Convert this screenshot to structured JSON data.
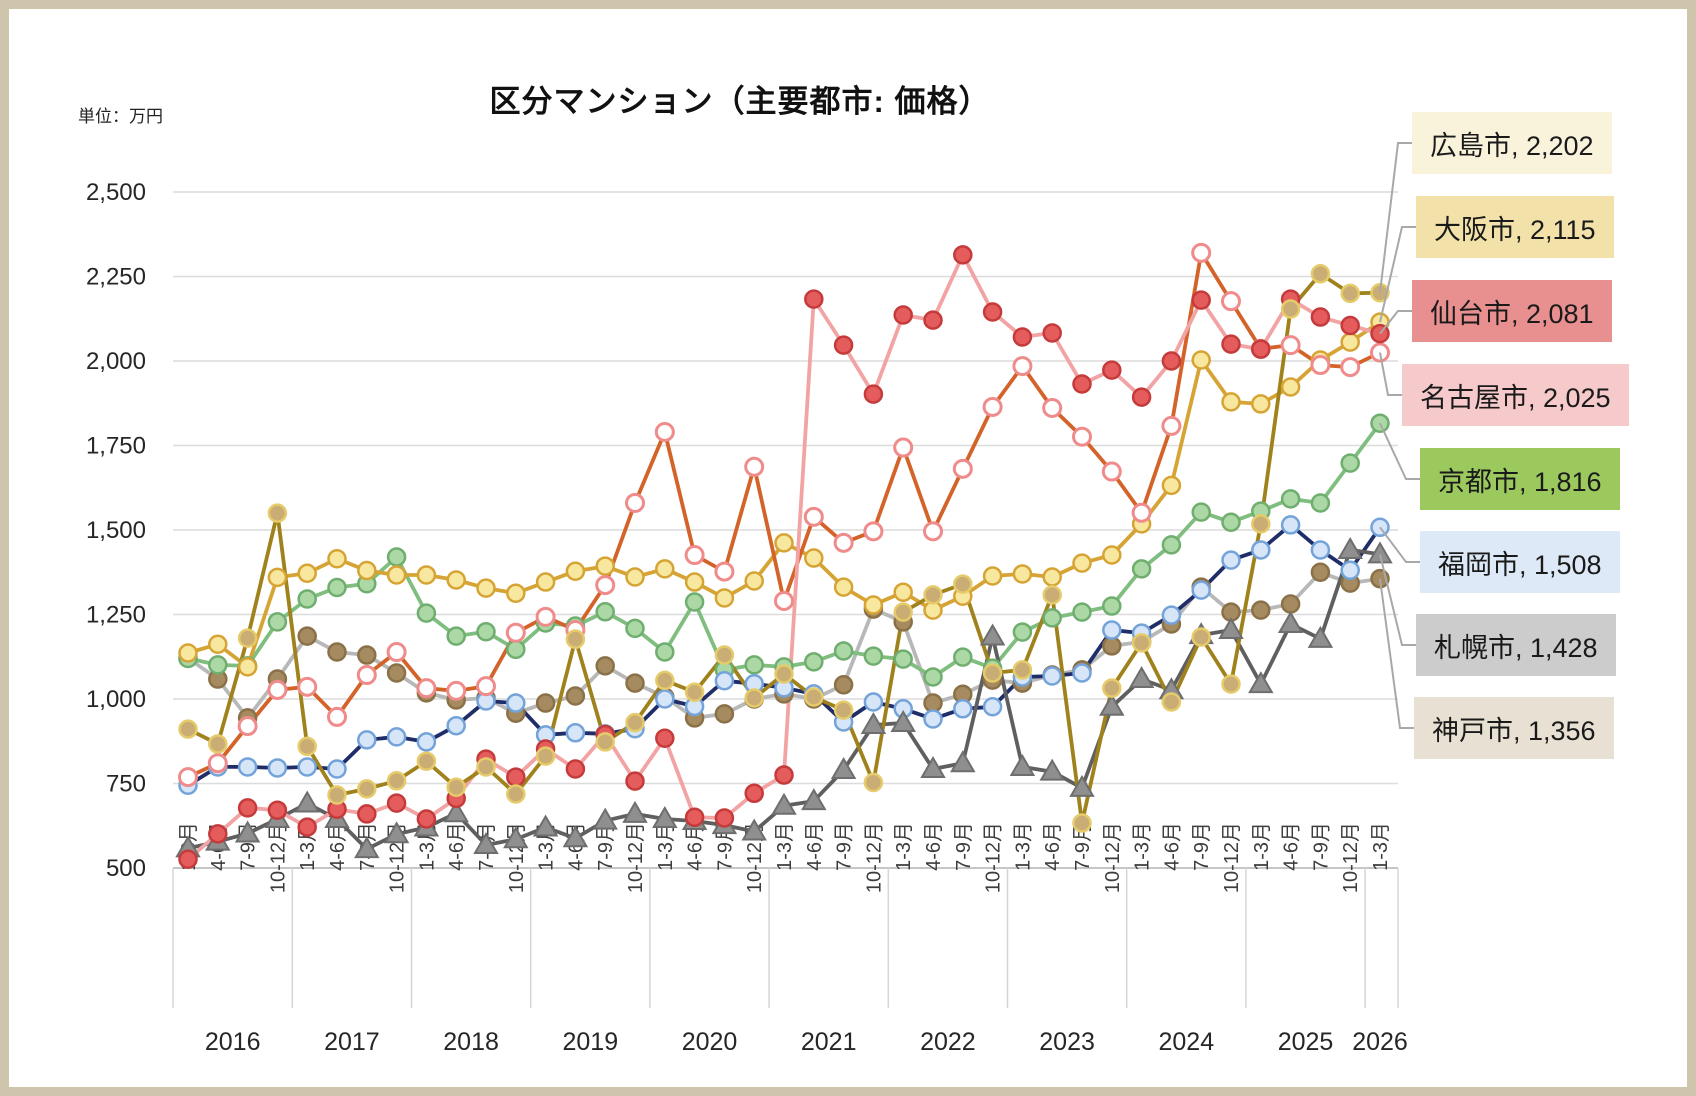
{
  "page": {
    "title": "区分マンション（主要都市: 価格）",
    "unit_label": "単位：万円",
    "frame_color": "#cfc5ad"
  },
  "chart_data": {
    "type": "line",
    "title": "区分マンション（主要都市: 価格）",
    "unit": "万円",
    "ylim": [
      500,
      2500
    ],
    "y_tick_step": 250,
    "y_tick_labels": [
      "2,500",
      "2,250",
      "2,000",
      "1,750",
      "1,500",
      "1,250",
      "1,000",
      "750",
      "500"
    ],
    "grid": "horizontal",
    "legend_position": "right-callouts",
    "years": [
      "2016",
      "2017",
      "2018",
      "2019",
      "2020",
      "2021",
      "2022",
      "2023",
      "2024",
      "2025",
      "2026"
    ],
    "quarters_per_year": [
      4,
      4,
      4,
      4,
      4,
      4,
      4,
      4,
      4,
      4,
      1
    ],
    "quarter_labels": [
      "1-3月",
      "4-6月",
      "7-9月",
      "10-12月"
    ],
    "series": [
      {
        "id": "hiroshima",
        "name": "広島市",
        "legend_label": "広島市, 2,202",
        "current_value": 2202,
        "line_color": "#a0821c",
        "marker": "circle",
        "marker_fill": "#c9ad74",
        "marker_stroke": "#e6cb6a",
        "legend_bg": "#faf3dc",
        "values": [
          911,
          867,
          1180,
          1550,
          860,
          716,
          734,
          758,
          816,
          739,
          799,
          719,
          831,
          1177,
          873,
          930,
          1055,
          1020,
          1130,
          1003,
          1074,
          1006,
          967,
          753,
          1257,
          1308,
          1340,
          1077,
          1086,
          1308,
          633,
          1032,
          1166,
          991,
          1183,
          1044,
          1518,
          2154,
          2258,
          2200,
          2202
        ]
      },
      {
        "id": "osaka",
        "name": "大阪市",
        "legend_label": "大阪市, 2,115",
        "current_value": 2115,
        "line_color": "#d6a434",
        "marker": "circle",
        "marker_fill": "#f8e79f",
        "marker_stroke": "#d6a434",
        "legend_bg": "#f2e2a9",
        "values": [
          1136,
          1162,
          1095,
          1360,
          1372,
          1415,
          1380,
          1367,
          1367,
          1352,
          1328,
          1313,
          1346,
          1378,
          1393,
          1361,
          1385,
          1346,
          1299,
          1349,
          1462,
          1417,
          1331,
          1278,
          1316,
          1263,
          1304,
          1364,
          1370,
          1361,
          1402,
          1426,
          1518,
          1632,
          2003,
          1879,
          1873,
          1923,
          2003,
          2056,
          2115
        ]
      },
      {
        "id": "sendai",
        "name": "仙台市",
        "legend_label": "仙台市, 2,081",
        "current_value": 2081,
        "line_color": "#f2a3a3",
        "marker": "circle",
        "marker_fill": "#e45c5c",
        "marker_stroke": "#c53b3b",
        "legend_bg": "#e88f8f",
        "values": [
          526,
          601,
          678,
          671,
          621,
          674,
          660,
          692,
          645,
          706,
          822,
          769,
          852,
          793,
          895,
          757,
          884,
          650,
          648,
          721,
          775,
          2183,
          2047,
          1902,
          2136,
          2121,
          2314,
          2145,
          2071,
          2083,
          1932,
          1973,
          1893,
          2000,
          2180,
          2050,
          2035,
          2183,
          2130,
          2105,
          2081
        ]
      },
      {
        "id": "nagoya",
        "name": "名古屋市",
        "legend_label": "名古屋市, 2,025",
        "current_value": 2025,
        "line_color": "#d4632a",
        "marker": "open-circle",
        "marker_fill": "#ffffff",
        "marker_stroke": "#ef8b8b",
        "legend_bg": "#f6cacb",
        "values": [
          769,
          810,
          920,
          1027,
          1036,
          947,
          1071,
          1139,
          1032,
          1024,
          1038,
          1196,
          1243,
          1204,
          1337,
          1580,
          1790,
          1426,
          1377,
          1687,
          1290,
          1539,
          1462,
          1496,
          1744,
          1496,
          1681,
          1864,
          1985,
          1861,
          1776,
          1673,
          1551,
          1808,
          2320,
          2177,
          2036,
          2047,
          1988,
          1982,
          2025
        ]
      },
      {
        "id": "kyoto",
        "name": "京都市",
        "legend_label": "京都市, 1,816",
        "current_value": 1816,
        "line_color": "#7fbe7f",
        "marker": "circle",
        "marker_fill": "#abd8a4",
        "marker_stroke": "#6fae6f",
        "legend_bg": "#9cc95e",
        "values": [
          1120,
          1101,
          1098,
          1228,
          1296,
          1330,
          1341,
          1420,
          1254,
          1186,
          1199,
          1147,
          1225,
          1216,
          1258,
          1209,
          1139,
          1287,
          1086,
          1101,
          1095,
          1110,
          1142,
          1127,
          1118,
          1065,
          1124,
          1091,
          1198,
          1240,
          1257,
          1275,
          1385,
          1456,
          1553,
          1523,
          1556,
          1592,
          1580,
          1698,
          1816
        ]
      },
      {
        "id": "fukuoka",
        "name": "福岡市",
        "legend_label": "福岡市, 1,508",
        "current_value": 1508,
        "line_color": "#1f2d69",
        "marker": "circle",
        "marker_fill": "#d6e5f7",
        "marker_stroke": "#74a3da",
        "legend_bg": "#dde9f7",
        "values": [
          745,
          799,
          799,
          796,
          799,
          793,
          879,
          888,
          873,
          921,
          994,
          988,
          894,
          900,
          897,
          912,
          1000,
          978,
          1054,
          1045,
          1033,
          1015,
          932,
          991,
          971,
          941,
          971,
          977,
          1065,
          1068,
          1077,
          1204,
          1195,
          1248,
          1322,
          1411,
          1441,
          1515,
          1441,
          1381,
          1508
        ]
      },
      {
        "id": "sapporo",
        "name": "札幌市",
        "legend_label": "札幌市, 1,428",
        "current_value": 1428,
        "line_color": "#5f5f5f",
        "marker": "triangle",
        "marker_fill": "#8f8f8f",
        "marker_stroke": "#6e6e6e",
        "legend_bg": "#cccccc",
        "values": [
          558,
          578,
          602,
          645,
          691,
          645,
          556,
          600,
          620,
          662,
          568,
          585,
          620,
          588,
          640,
          660,
          645,
          639,
          627,
          608,
          684,
          698,
          790,
          923,
          929,
          793,
          810,
          1185,
          799,
          785,
          737,
          977,
          1059,
          1026,
          1189,
          1204,
          1044,
          1222,
          1178,
          1441,
          1428
        ]
      },
      {
        "id": "kobe",
        "name": "神戸市",
        "legend_label": "神戸市, 1,356",
        "current_value": 1356,
        "line_color": "#b8b8b8",
        "marker": "circle",
        "marker_fill": "#a68b60",
        "marker_stroke": "#8a7148",
        "legend_bg": "#e8e1d3",
        "values": [
          1121,
          1059,
          944,
          1059,
          1186,
          1139,
          1130,
          1077,
          1018,
          997,
          1003,
          958,
          988,
          1009,
          1098,
          1047,
          1006,
          944,
          956,
          1000,
          1015,
          1000,
          1042,
          1266,
          1228,
          988,
          1014,
          1056,
          1047,
          1071,
          1086,
          1157,
          1169,
          1222,
          1331,
          1257,
          1263,
          1281,
          1375,
          1343,
          1356
        ]
      }
    ]
  }
}
